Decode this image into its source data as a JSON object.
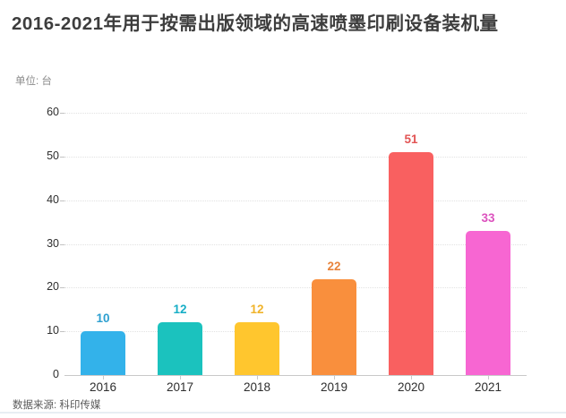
{
  "header": {
    "title": "2016-2021年用于按需出版领域的高速喷墨印刷设备装机量",
    "unit_label": "单位: 台"
  },
  "footer": {
    "source": "数据来源: 科印传媒"
  },
  "chart_data": {
    "type": "bar",
    "title": "2016-2021年用于按需出版领域的高速喷墨印刷设备装机量",
    "categories": [
      "2016",
      "2017",
      "2018",
      "2019",
      "2020",
      "2021"
    ],
    "values": [
      10,
      12,
      12,
      22,
      51,
      33
    ],
    "bar_colors": [
      "#33B2EA",
      "#1BC2BE",
      "#FFC62E",
      "#F98F3D",
      "#F96060",
      "#F766D2"
    ],
    "value_label_colors": [
      "#2D9FD0",
      "#17AEC6",
      "#F0B32A",
      "#E8833B",
      "#E25555",
      "#DC52BE"
    ],
    "xlabel": "",
    "ylabel": "台",
    "ylim": [
      0,
      60
    ],
    "ytick_step": 10,
    "grid": "horizontal-dotted",
    "legend": "none",
    "value_labels_shown": true
  }
}
